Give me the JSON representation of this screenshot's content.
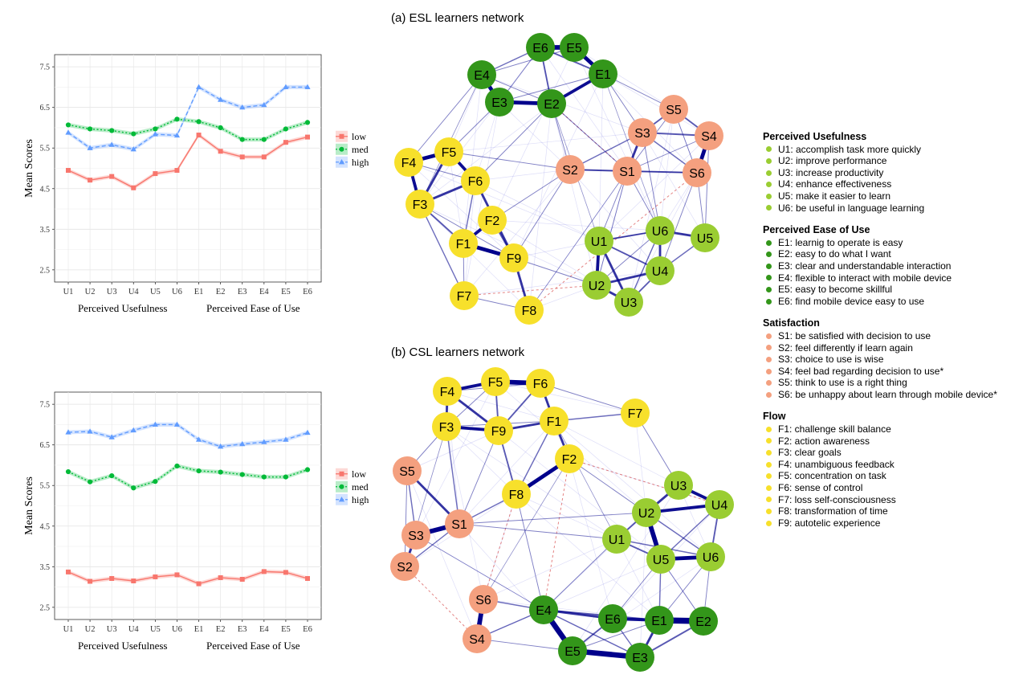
{
  "chart_data": [
    {
      "type": "line",
      "panel": "top-left",
      "ylabel": "Mean Scores",
      "categories": [
        "U1",
        "U2",
        "U3",
        "U4",
        "U5",
        "U6",
        "E1",
        "E2",
        "E3",
        "E4",
        "E5",
        "E6"
      ],
      "group_labels": [
        "Perceived Usefulness",
        "Perceived Ease of Use"
      ],
      "yticks": [
        "2.5",
        "3.5",
        "4.5",
        "5.5",
        "6.5",
        "7.5"
      ],
      "ylim": [
        2.2,
        7.8
      ],
      "grid": true,
      "legend_position": "right",
      "series": [
        {
          "name": "low",
          "color": "#F8766D",
          "marker": "square",
          "values": [
            4.95,
            4.71,
            4.8,
            4.52,
            4.87,
            4.95,
            5.82,
            5.42,
            5.28,
            5.28,
            5.64,
            5.77
          ]
        },
        {
          "name": "med",
          "color": "#00BA38",
          "marker": "circle",
          "values": [
            6.07,
            5.97,
            5.93,
            5.85,
            5.97,
            6.21,
            6.15,
            6.0,
            5.71,
            5.71,
            5.97,
            6.13
          ]
        },
        {
          "name": "high",
          "color": "#619CFF",
          "marker": "triangle",
          "values": [
            5.88,
            5.5,
            5.58,
            5.47,
            5.84,
            5.81,
            7.0,
            6.69,
            6.5,
            6.56,
            7.0,
            7.0
          ]
        }
      ]
    },
    {
      "type": "line",
      "panel": "bottom-left",
      "ylabel": "Mean Scores",
      "categories": [
        "U1",
        "U2",
        "U3",
        "U4",
        "U5",
        "U6",
        "E1",
        "E2",
        "E3",
        "E4",
        "E5",
        "E6"
      ],
      "group_labels": [
        "Perceived Usefulness",
        "Perceived Ease of Use"
      ],
      "yticks": [
        "2.5",
        "3.5",
        "4.5",
        "5.5",
        "6.5",
        "7.5"
      ],
      "ylim": [
        2.2,
        7.8
      ],
      "grid": true,
      "legend_position": "right",
      "series": [
        {
          "name": "low",
          "color": "#F8766D",
          "marker": "square",
          "values": [
            3.37,
            3.14,
            3.21,
            3.15,
            3.25,
            3.3,
            3.08,
            3.23,
            3.19,
            3.38,
            3.36,
            3.21
          ]
        },
        {
          "name": "med",
          "color": "#00BA38",
          "marker": "circle",
          "values": [
            5.84,
            5.59,
            5.74,
            5.44,
            5.6,
            5.98,
            5.86,
            5.83,
            5.77,
            5.71,
            5.71,
            5.89
          ]
        },
        {
          "name": "high",
          "color": "#619CFF",
          "marker": "triangle",
          "values": [
            6.81,
            6.83,
            6.69,
            6.86,
            7.0,
            7.0,
            6.63,
            6.46,
            6.52,
            6.57,
            6.63,
            6.8
          ]
        }
      ]
    }
  ],
  "networks": [
    {
      "title": "(a) ESL learners network",
      "nodes": [
        {
          "id": "E6",
          "group": "E"
        },
        {
          "id": "E5",
          "group": "E"
        },
        {
          "id": "E4",
          "group": "E"
        },
        {
          "id": "E1",
          "group": "E"
        },
        {
          "id": "E3",
          "group": "E"
        },
        {
          "id": "E2",
          "group": "E"
        },
        {
          "id": "S5",
          "group": "S"
        },
        {
          "id": "S3",
          "group": "S"
        },
        {
          "id": "S4",
          "group": "S"
        },
        {
          "id": "S2",
          "group": "S"
        },
        {
          "id": "S1",
          "group": "S"
        },
        {
          "id": "S6",
          "group": "S"
        },
        {
          "id": "F5",
          "group": "F"
        },
        {
          "id": "F4",
          "group": "F"
        },
        {
          "id": "F6",
          "group": "F"
        },
        {
          "id": "F3",
          "group": "F"
        },
        {
          "id": "F2",
          "group": "F"
        },
        {
          "id": "F1",
          "group": "F"
        },
        {
          "id": "F9",
          "group": "F"
        },
        {
          "id": "F7",
          "group": "F"
        },
        {
          "id": "F8",
          "group": "F"
        },
        {
          "id": "U6",
          "group": "U"
        },
        {
          "id": "U5",
          "group": "U"
        },
        {
          "id": "U1",
          "group": "U"
        },
        {
          "id": "U4",
          "group": "U"
        },
        {
          "id": "U2",
          "group": "U"
        },
        {
          "id": "U3",
          "group": "U"
        }
      ],
      "edges": [
        [
          "E6",
          "E5",
          6
        ],
        [
          "E5",
          "E1",
          5
        ],
        [
          "E6",
          "E1",
          2
        ],
        [
          "E4",
          "E3",
          5
        ],
        [
          "E3",
          "E2",
          5
        ],
        [
          "E2",
          "E1",
          4
        ],
        [
          "E6",
          "E2",
          2
        ],
        [
          "E4",
          "E6",
          1.5
        ],
        [
          "E4",
          "E2",
          1
        ],
        [
          "E1",
          "E3",
          1
        ],
        [
          "E6",
          "E3",
          1
        ],
        [
          "E4",
          "E5",
          1
        ],
        [
          "S5",
          "S3",
          2
        ],
        [
          "S5",
          "S4",
          2
        ],
        [
          "S3",
          "S4",
          2
        ],
        [
          "S4",
          "S6",
          5
        ],
        [
          "S3",
          "S1",
          3
        ],
        [
          "S1",
          "S6",
          2
        ],
        [
          "S3",
          "S6",
          1.5
        ],
        [
          "S2",
          "S1",
          2
        ],
        [
          "S2",
          "S3",
          1.5
        ],
        [
          "S5",
          "S1",
          1
        ],
        [
          "S2",
          "S6",
          1
        ],
        [
          "S1",
          "S4",
          1
        ],
        [
          "S5",
          "S6",
          1
        ],
        [
          "F4",
          "F5",
          5
        ],
        [
          "F5",
          "F6",
          4
        ],
        [
          "F4",
          "F3",
          4
        ],
        [
          "F3",
          "F6",
          3
        ],
        [
          "F5",
          "F3",
          3
        ],
        [
          "F6",
          "F9",
          3
        ],
        [
          "F2",
          "F1",
          4
        ],
        [
          "F1",
          "F9",
          5
        ],
        [
          "F2",
          "F9",
          2
        ],
        [
          "F1",
          "F3",
          2
        ],
        [
          "F9",
          "F8",
          3
        ],
        [
          "F3",
          "F7",
          1.5
        ],
        [
          "F1",
          "F6",
          1.5
        ],
        [
          "F1",
          "F7",
          1
        ],
        [
          "F3",
          "F9",
          1
        ],
        [
          "F7",
          "F8",
          1
        ],
        [
          "F4",
          "F6",
          1
        ],
        [
          "U1",
          "U2",
          4
        ],
        [
          "U1",
          "U3",
          3
        ],
        [
          "U6",
          "U4",
          3
        ],
        [
          "U6",
          "U5",
          3
        ],
        [
          "U4",
          "U2",
          3
        ],
        [
          "U1",
          "U4",
          2
        ],
        [
          "U2",
          "U3",
          3
        ],
        [
          "U6",
          "U1",
          2
        ],
        [
          "U6",
          "U3",
          1.5
        ],
        [
          "U4",
          "U3",
          2
        ],
        [
          "U5",
          "U4",
          1.5
        ],
        [
          "U6",
          "U2",
          1
        ],
        [
          "U1",
          "U6",
          1
        ],
        [
          "E2",
          "S2",
          1
        ],
        [
          "E2",
          "S1",
          1
        ],
        [
          "E1",
          "S3",
          1
        ],
        [
          "E1",
          "S5",
          1
        ],
        [
          "E4",
          "F4",
          1
        ],
        [
          "E3",
          "F5",
          1
        ],
        [
          "E4",
          "F3",
          0.8
        ],
        [
          "E2",
          "F6",
          1
        ],
        [
          "S2",
          "F5",
          1
        ],
        [
          "S2",
          "F9",
          1
        ],
        [
          "S1",
          "U1",
          1
        ],
        [
          "S1",
          "U2",
          1
        ],
        [
          "S3",
          "U6",
          1
        ],
        [
          "S6",
          "U5",
          1
        ],
        [
          "S6",
          "U4",
          1
        ],
        [
          "S1",
          "U6",
          1
        ],
        [
          "F9",
          "U2",
          1
        ],
        [
          "F8",
          "S1",
          0.8
        ],
        [
          "F2",
          "S2",
          1
        ],
        [
          "E1",
          "U6",
          0.6
        ],
        [
          "E2",
          "U1",
          0.6
        ],
        [
          "S4",
          "U5",
          1
        ]
      ]
    },
    {
      "title": "(b) CSL learners network",
      "nodes": [
        {
          "id": "F4",
          "group": "F"
        },
        {
          "id": "F5",
          "group": "F"
        },
        {
          "id": "F6",
          "group": "F"
        },
        {
          "id": "F3",
          "group": "F"
        },
        {
          "id": "F9",
          "group": "F"
        },
        {
          "id": "F1",
          "group": "F"
        },
        {
          "id": "F7",
          "group": "F"
        },
        {
          "id": "F2",
          "group": "F"
        },
        {
          "id": "F8",
          "group": "F"
        },
        {
          "id": "S5",
          "group": "S"
        },
        {
          "id": "S1",
          "group": "S"
        },
        {
          "id": "S3",
          "group": "S"
        },
        {
          "id": "S2",
          "group": "S"
        },
        {
          "id": "S6",
          "group": "S"
        },
        {
          "id": "S4",
          "group": "S"
        },
        {
          "id": "U3",
          "group": "U"
        },
        {
          "id": "U2",
          "group": "U"
        },
        {
          "id": "U4",
          "group": "U"
        },
        {
          "id": "U1",
          "group": "U"
        },
        {
          "id": "U5",
          "group": "U"
        },
        {
          "id": "U6",
          "group": "U"
        },
        {
          "id": "E4",
          "group": "E"
        },
        {
          "id": "E6",
          "group": "E"
        },
        {
          "id": "E1",
          "group": "E"
        },
        {
          "id": "E2",
          "group": "E"
        },
        {
          "id": "E5",
          "group": "E"
        },
        {
          "id": "E3",
          "group": "E"
        }
      ],
      "edges": [
        [
          "F5",
          "F6",
          6
        ],
        [
          "F4",
          "F5",
          4
        ],
        [
          "F4",
          "F3",
          3
        ],
        [
          "F3",
          "F9",
          4
        ],
        [
          "F9",
          "F1",
          3
        ],
        [
          "F4",
          "F9",
          3
        ],
        [
          "F5",
          "F9",
          2
        ],
        [
          "F6",
          "F9",
          2
        ],
        [
          "F6",
          "F1",
          3
        ],
        [
          "F1",
          "F2",
          3
        ],
        [
          "F2",
          "F8",
          5
        ],
        [
          "F1",
          "F7",
          1.5
        ],
        [
          "F9",
          "F8",
          2
        ],
        [
          "F3",
          "F1",
          1
        ],
        [
          "F4",
          "F6",
          1
        ],
        [
          "F5",
          "F3",
          1
        ],
        [
          "F6",
          "F7",
          1
        ],
        [
          "F1",
          "F8",
          1.5
        ],
        [
          "S3",
          "S1",
          6
        ],
        [
          "S5",
          "S1",
          3
        ],
        [
          "S5",
          "S3",
          1.5
        ],
        [
          "S3",
          "S2",
          3
        ],
        [
          "S1",
          "S2",
          1.5
        ],
        [
          "S6",
          "S4",
          6
        ],
        [
          "S5",
          "S2",
          1
        ],
        [
          "U2",
          "U4",
          4
        ],
        [
          "U3",
          "U4",
          4
        ],
        [
          "U3",
          "U2",
          3
        ],
        [
          "U2",
          "U5",
          6
        ],
        [
          "U5",
          "U6",
          5
        ],
        [
          "U1",
          "U5",
          2
        ],
        [
          "U2",
          "U1",
          2
        ],
        [
          "U1",
          "U6",
          1.5
        ],
        [
          "U4",
          "U6",
          2
        ],
        [
          "U2",
          "U6",
          1.5
        ],
        [
          "U5",
          "U4",
          1.5
        ],
        [
          "E1",
          "E2",
          8
        ],
        [
          "E6",
          "E1",
          4
        ],
        [
          "E4",
          "E5",
          7
        ],
        [
          "E5",
          "E3",
          7
        ],
        [
          "E3",
          "E1",
          3
        ],
        [
          "E4",
          "E6",
          3
        ],
        [
          "E6",
          "E5",
          2
        ],
        [
          "E3",
          "E2",
          2
        ],
        [
          "E4",
          "E1",
          2
        ],
        [
          "E4",
          "E3",
          1.5
        ],
        [
          "E6",
          "E3",
          1.5
        ],
        [
          "E5",
          "E1",
          1
        ],
        [
          "S1",
          "F8",
          1.5
        ],
        [
          "S1",
          "F3",
          1.5
        ],
        [
          "S1",
          "F9",
          1
        ],
        [
          "S5",
          "F3",
          1
        ],
        [
          "S1",
          "U2",
          1
        ],
        [
          "S1",
          "U1",
          1
        ],
        [
          "S6",
          "E4",
          1.5
        ],
        [
          "S4",
          "E4",
          1.5
        ],
        [
          "S4",
          "E5",
          1
        ],
        [
          "F2",
          "U2",
          1
        ],
        [
          "F7",
          "U3",
          1
        ],
        [
          "U5",
          "E1",
          1.5
        ],
        [
          "U5",
          "E6",
          1
        ],
        [
          "U1",
          "E4",
          1
        ],
        [
          "U6",
          "E2",
          1
        ],
        [
          "U5",
          "E2",
          1
        ],
        [
          "U6",
          "E1",
          1
        ],
        [
          "F8",
          "E4",
          1
        ],
        [
          "S2",
          "F3",
          0.8
        ],
        [
          "S3",
          "E4",
          0.8
        ],
        [
          "F1",
          "U1",
          0.6
        ],
        [
          "S6",
          "F2",
          0.6
        ]
      ]
    }
  ],
  "legend": [
    {
      "title": "Perceived Usefulness",
      "color": "#9ACD32",
      "items": [
        "U1: accomplish task more quickly",
        "U2: improve performance",
        "U3: increase productivity",
        "U4: enhance effectiveness",
        "U5: make it easier to learn",
        "U6: be useful in language learning"
      ]
    },
    {
      "title": "Perceived Ease of Use",
      "color": "#33961A",
      "items": [
        "E1: learnig to operate is easy",
        "E2: easy to do what I want",
        "E3: clear and understandable interaction",
        "E4: flexible to interact with mobile device",
        "E5: easy to become skillful",
        "E6: find mobile device easy to use"
      ]
    },
    {
      "title": "Satisfaction",
      "color": "#F4A07F",
      "items": [
        "S1: be satisfied with decision to use",
        "S2: feel differently if learn again",
        "S3: choice to use is wise",
        "S4: feel bad regarding decision to use*",
        "S5: think to use is a right thing",
        "S6: be unhappy about learn through mobile device*"
      ]
    },
    {
      "title": "Flow",
      "color": "#F7E02B",
      "items": [
        "F1: challenge skill balance",
        "F2: action awareness",
        "F3: clear goals",
        "F4: unambiguous feedback",
        "F5: concentration on task",
        "F6: sense of control",
        "F7: loss self-consciousness",
        "F8: transformation of time",
        "F9: autotelic experience"
      ]
    }
  ],
  "colors": {
    "E": "#33961A",
    "U": "#9ACD32",
    "S": "#F4A07F",
    "F": "#F7E02B",
    "edge": "#00008B",
    "neg_edge": "#D23232"
  }
}
